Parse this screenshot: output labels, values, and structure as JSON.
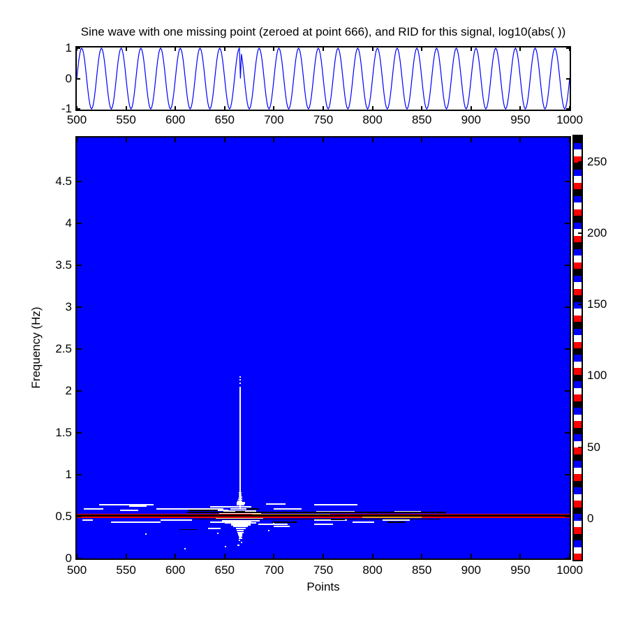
{
  "figure": {
    "title": "Sine wave with one missing point (zeroed at point 666), and RID for this signal, log10(abs( ))",
    "background": "#ffffff"
  },
  "colors": {
    "line_blue": "#0000ff",
    "heatmap_background": "#0000ff",
    "red": "#ff0000",
    "orange": "#ff9900",
    "black": "#000000",
    "white": "#ffffff",
    "axis": "#000000"
  },
  "main_plot": {
    "xlabel": "Points",
    "ylabel": "Frequency (Hz)"
  },
  "chart_data": [
    {
      "type": "line",
      "title": "Sine wave with one missing point (zeroed at point 666)",
      "x_range": [
        500,
        1000
      ],
      "y_range": [
        -1,
        1
      ],
      "x_ticks": [
        500,
        550,
        600,
        650,
        700,
        750,
        800,
        850,
        900,
        950,
        1000
      ],
      "y_ticks": [
        -1,
        0,
        1
      ],
      "series": [
        {
          "name": "sine",
          "color": "#0000ff",
          "amplitude": 1,
          "frequency_cycles_per_point": 0.05,
          "zeroed_point": 666
        }
      ]
    },
    {
      "type": "heatmap",
      "title": "RID for this signal, log10(abs( ))",
      "xlabel": "Points",
      "ylabel": "Frequency (Hz)",
      "xlim": [
        500,
        1000
      ],
      "ylim": [
        0,
        5.03
      ],
      "x_ticks": [
        500,
        550,
        600,
        650,
        700,
        750,
        800,
        850,
        900,
        950,
        1000
      ],
      "y_ticks": [
        0,
        0.5,
        1,
        1.5,
        2,
        2.5,
        3,
        3.5,
        4,
        4.5
      ],
      "background_color": "#0000ff",
      "features": {
        "signal_component_hz": 0.5,
        "impulse_location_points": 666,
        "spike": {
          "t": 666,
          "f1": 0.6,
          "f2": 2.05,
          "w": 2.2
        },
        "spike_dots_f": [
          2.09,
          2.13,
          2.17
        ],
        "blob": {
          "t": 666,
          "f_top": 0.78,
          "f_bottom": 0.24,
          "rows": 24,
          "base_hw_pts": 1,
          "gauss_hw_pts": 18,
          "gauss_sigma": 0.08,
          "wide_hw_pts": 3,
          "wide_sigma": 0.18,
          "flare_pts": 6,
          "flare_sigma": 0.16
        },
        "stripe_rows": [
          [
            0.53,
            1.8,
            500,
            1000,
            "#ff0000"
          ],
          [
            0.512,
            2.6,
            500,
            1000,
            "#000000"
          ],
          [
            0.4895,
            1.8,
            500,
            1000,
            "#ff0000"
          ],
          [
            0.548,
            1.6,
            612,
            875,
            "#000000"
          ],
          [
            0.47,
            1.6,
            618,
            868,
            "#000000"
          ]
        ],
        "white_dashes": [
          [
            0.642,
            523,
            578
          ],
          [
            0.642,
            741,
            785
          ],
          [
            0.617,
            635,
            677
          ],
          [
            0.65,
            692,
            712
          ],
          [
            0.625,
            553,
            571
          ],
          [
            0.594,
            507,
            527
          ],
          [
            0.594,
            581,
            649
          ],
          [
            0.594,
            700,
            728
          ],
          [
            0.575,
            544,
            562
          ],
          [
            0.575,
            620,
            654
          ],
          [
            0.558,
            743,
            782
          ],
          [
            0.558,
            822,
            849
          ],
          [
            0.458,
            506,
            516
          ],
          [
            0.458,
            585,
            617
          ],
          [
            0.458,
            741,
            774
          ],
          [
            0.458,
            810,
            838
          ],
          [
            0.433,
            535,
            585
          ],
          [
            0.433,
            635,
            677
          ],
          [
            0.433,
            780,
            802
          ],
          [
            0.408,
            684,
            714
          ],
          [
            0.408,
            741,
            760
          ],
          [
            0.383,
            700,
            716
          ],
          [
            0.36,
            633,
            646
          ]
        ],
        "black_dashes": [
          [
            0.575,
            613,
            643
          ],
          [
            0.594,
            672,
            685
          ],
          [
            0.558,
            661,
            671
          ],
          [
            0.433,
            698,
            723
          ],
          [
            0.433,
            815,
            833
          ],
          [
            0.467,
            758,
            772
          ],
          [
            0.345,
            604,
            622
          ]
        ],
        "orange_segments": [
          [
            0.53,
            678,
            757
          ],
          [
            0.494,
            790,
            850
          ]
        ],
        "dots": [
          [
            666,
            0.26
          ],
          [
            665,
            0.22
          ],
          [
            667,
            0.19
          ],
          [
            664,
            0.16
          ],
          [
            643,
            0.3
          ],
          [
            695,
            0.33
          ],
          [
            570,
            0.295
          ],
          [
            610,
            0.12
          ],
          [
            700,
            0.42
          ],
          [
            651,
            0.14
          ]
        ]
      }
    },
    {
      "type": "colorbar",
      "colormap": "flag",
      "cycle_colors": [
        "#ff0000",
        "#ffffff",
        "#0000ff",
        "#000000"
      ],
      "blocks": 64,
      "tick_values": [
        0,
        50,
        100,
        150,
        200,
        250
      ],
      "value_range": [
        -29,
        268
      ]
    }
  ]
}
